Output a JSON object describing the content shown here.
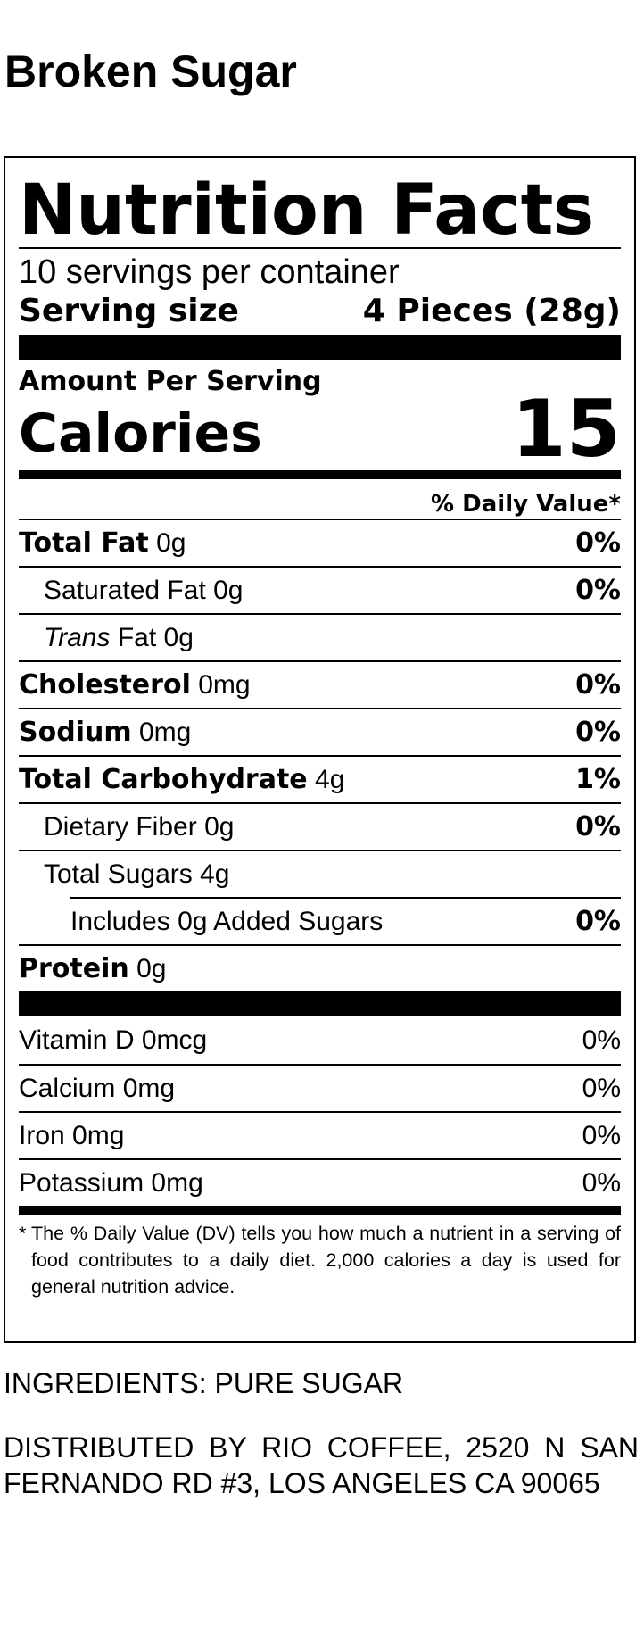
{
  "product": {
    "title": "Broken Sugar"
  },
  "label": {
    "title": "Nutrition Facts",
    "servings_per_container": "10 servings per container",
    "serving_size_label": "Serving size",
    "serving_size_value": "4 Pieces (28g)",
    "amount_per_serving": "Amount Per Serving",
    "calories_label": "Calories",
    "calories_value": "15",
    "daily_value_header": "% Daily Value*",
    "nutrients": [
      {
        "name": "Total Fat",
        "amount": "0g",
        "dv": "0%"
      },
      {
        "name": "Saturated Fat",
        "amount": "0g",
        "dv": "0%"
      },
      {
        "name_italic": "Trans",
        "name": "Fat",
        "amount": "0g",
        "dv": ""
      },
      {
        "name": "Cholesterol",
        "amount": "0mg",
        "dv": "0%"
      },
      {
        "name": "Sodium",
        "amount": "0mg",
        "dv": "0%"
      },
      {
        "name": "Total Carbohydrate",
        "amount": "4g",
        "dv": "1%"
      },
      {
        "name": "Dietary Fiber",
        "amount": "0g",
        "dv": "0%"
      },
      {
        "name": "Total Sugars",
        "amount": "4g",
        "dv": ""
      },
      {
        "prefix": "Includes",
        "amount": "0g",
        "name": "Added Sugars",
        "dv": "0%"
      },
      {
        "name": "Protein",
        "amount": "0g",
        "dv": ""
      }
    ],
    "vitamins": [
      {
        "name": "Vitamin D",
        "amount": "0mcg",
        "dv": "0%"
      },
      {
        "name": "Calcium",
        "amount": "0mg",
        "dv": "0%"
      },
      {
        "name": "Iron",
        "amount": "0mg",
        "dv": "0%"
      },
      {
        "name": "Potassium",
        "amount": "0mg",
        "dv": "0%"
      }
    ],
    "footnote_star": "*",
    "footnote": "The % Daily Value (DV) tells you how much a nutrient in a serving of food contributes to a daily diet. 2,000 calories a day is used for general nutrition advice."
  },
  "ingredients": "INGREDIENTS: PURE SUGAR",
  "distributed_by": "DISTRIBUTED BY RIO COFFEE, 2520 N SAN FERNANDO RD #3, LOS ANGELES CA 90065"
}
